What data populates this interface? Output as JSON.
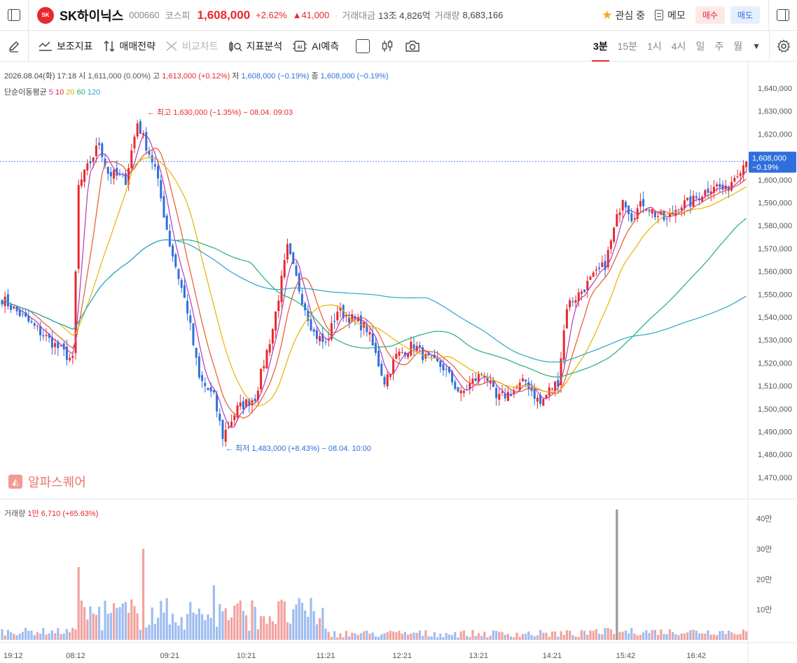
{
  "header": {
    "logo_text": "SK",
    "stock_name": "SK하이닉스",
    "code": "000660",
    "market": "코스피",
    "price": "1,608,000",
    "change_pct": "+2.62%",
    "change_abs": "▲41,000",
    "trade_amount_label": "거래대금",
    "trade_amount": "13조 4,826억",
    "volume_label": "거래량",
    "volume": "8,683,166",
    "watch_label": "관심 중",
    "memo_label": "메모",
    "buy_label": "매수",
    "sell_label": "매도"
  },
  "toolbar": {
    "indicators": "보조지표",
    "strategy": "매매전략",
    "compare": "비교차트",
    "analysis": "지표분석",
    "ai_badge": "AI",
    "ai_forecast": "AI예측",
    "timeframes": [
      "3분",
      "15분",
      "1시",
      "4시",
      "일",
      "주",
      "월"
    ],
    "active_timeframe": "3분"
  },
  "info": {
    "datetime": "2026.08.04(화) 17:18",
    "open_label": "시",
    "open": "1,611,000 (0.00%)",
    "high_label": "고",
    "high": "1,613,000 (+0.12%)",
    "low_label": "저",
    "low": "1,608,000 (−0.19%)",
    "close_label": "종",
    "close": "1,608,000 (−0.19%)",
    "ma_label": "단순이동평균",
    "ma_periods": [
      "5",
      "10",
      "20",
      "60",
      "120"
    ]
  },
  "annotations": {
    "high": "← 최고 1,630,000 (−1.35%) − 08.04. 09:03",
    "low": "← 최저 1,483,000 (+8.43%) − 08.04. 10:00"
  },
  "watermark": "알파스퀘어",
  "volume_panel": {
    "label": "거래량",
    "value": "1만 6,710 (+65.63%)"
  },
  "current_price_tag": {
    "price": "1,608,000",
    "change": "−0.19%"
  },
  "colors": {
    "up": "#e8282d",
    "down": "#2f6fdc",
    "ma5": "#b43bb8",
    "ma10": "#e8582d",
    "ma20": "#e8b400",
    "ma60": "#1fb07a",
    "ma120": "#2aa6c8"
  },
  "chart_data": {
    "type": "candlestick",
    "price_axis_ticks": [
      "1,640,000",
      "1,630,000",
      "1,620,000",
      "1,610,000",
      "1,600,000",
      "1,590,000",
      "1,580,000",
      "1,570,000",
      "1,560,000",
      "1,550,000",
      "1,540,000",
      "1,530,000",
      "1,520,000",
      "1,510,000",
      "1,500,000",
      "1,490,000",
      "1,480,000",
      "1,470,000"
    ],
    "price_axis_values": [
      1640000,
      1630000,
      1620000,
      1610000,
      1600000,
      1590000,
      1580000,
      1570000,
      1560000,
      1550000,
      1540000,
      1530000,
      1520000,
      1510000,
      1500000,
      1490000,
      1480000,
      1470000
    ],
    "ylim": [
      1467000,
      1650000
    ],
    "volume_axis_ticks": [
      "40만",
      "30만",
      "20만",
      "10만"
    ],
    "volume_axis_values": [
      400000,
      300000,
      200000,
      100000
    ],
    "time_labels": [
      "19:12",
      "08:12",
      "09:21",
      "10:21",
      "11:21",
      "12:21",
      "13:21",
      "14:21",
      "15:42",
      "16:42"
    ],
    "time_label_index": [
      0,
      25,
      57,
      83,
      110,
      136,
      162,
      187,
      212,
      236
    ],
    "candle_count": 254,
    "close_anchors": [
      [
        0,
        1548000
      ],
      [
        24,
        1521000
      ],
      [
        26,
        1597000
      ],
      [
        33,
        1616000
      ],
      [
        36,
        1603000
      ],
      [
        42,
        1600000
      ],
      [
        46,
        1625000
      ],
      [
        52,
        1605000
      ],
      [
        57,
        1572000
      ],
      [
        63,
        1543000
      ],
      [
        67,
        1513000
      ],
      [
        72,
        1505000
      ],
      [
        75,
        1488000
      ],
      [
        80,
        1500000
      ],
      [
        86,
        1505000
      ],
      [
        92,
        1535000
      ],
      [
        97,
        1570000
      ],
      [
        102,
        1548000
      ],
      [
        106,
        1533000
      ],
      [
        110,
        1528000
      ],
      [
        114,
        1543000
      ],
      [
        118,
        1540000
      ],
      [
        124,
        1535000
      ],
      [
        130,
        1512000
      ],
      [
        134,
        1523000
      ],
      [
        140,
        1528000
      ],
      [
        144,
        1522000
      ],
      [
        150,
        1518000
      ],
      [
        156,
        1506000
      ],
      [
        160,
        1512000
      ],
      [
        164,
        1516000
      ],
      [
        168,
        1504000
      ],
      [
        174,
        1508000
      ],
      [
        178,
        1512000
      ],
      [
        183,
        1502000
      ],
      [
        186,
        1508000
      ],
      [
        189,
        1512000
      ],
      [
        192,
        1545000
      ],
      [
        196,
        1550000
      ],
      [
        200,
        1556000
      ],
      [
        205,
        1563000
      ],
      [
        208,
        1578000
      ],
      [
        211,
        1593000
      ],
      [
        214,
        1584000
      ],
      [
        218,
        1590000
      ],
      [
        222,
        1585000
      ],
      [
        226,
        1582000
      ],
      [
        230,
        1589000
      ],
      [
        234,
        1590000
      ],
      [
        238,
        1594000
      ],
      [
        242,
        1598000
      ],
      [
        246,
        1595000
      ],
      [
        250,
        1604000
      ],
      [
        253,
        1608000
      ]
    ],
    "current_price": 1608000
  }
}
